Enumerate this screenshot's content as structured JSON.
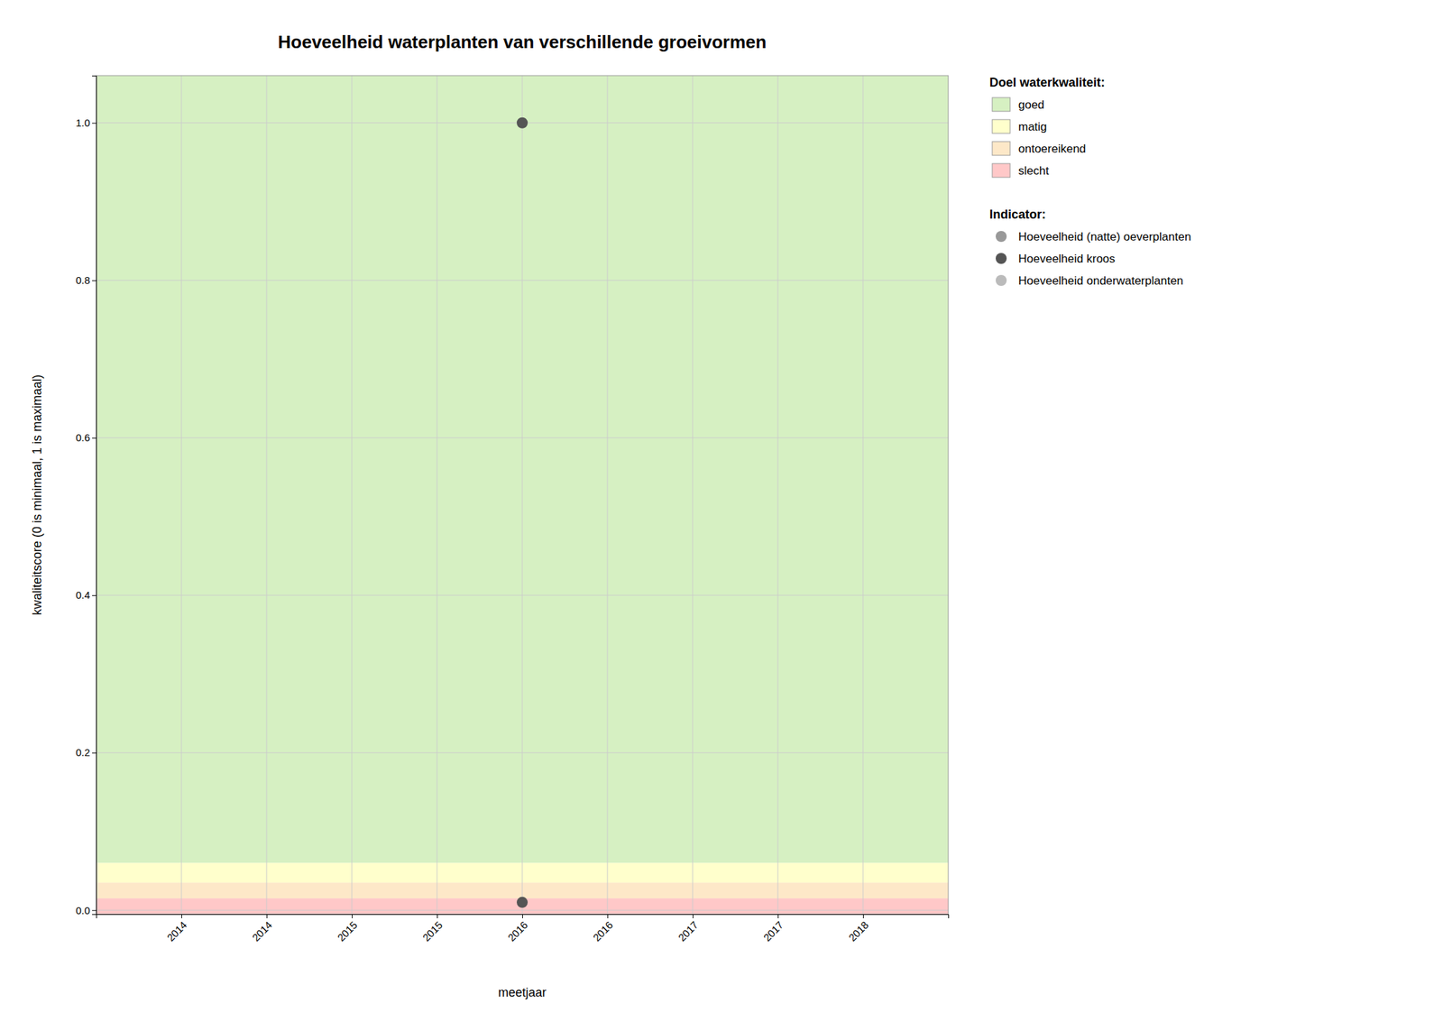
{
  "chart_data": {
    "type": "scatter",
    "title": "Hoeveelheid waterplanten van verschillende groeivormen",
    "xlabel": "meetjaar",
    "ylabel": "kwaliteitscore (0 is minimaal, 1 is maximaal)",
    "xlim": [
      2013.5,
      2018.5
    ],
    "ylim": [
      -0.005,
      1.06
    ],
    "xticks": [
      2014.0,
      {
        "value": 2014.5,
        "label": "2014"
      },
      2015.0,
      {
        "value": 2015.5,
        "label": "2015"
      },
      2016.0,
      {
        "value": 2016.5,
        "label": "2016"
      },
      2017.0,
      {
        "value": 2017.5,
        "label": "2017"
      },
      2018.0
    ],
    "yticks": [
      {
        "value": 0.0,
        "label": "0.0"
      },
      0.2,
      0.4,
      0.6,
      0.8,
      {
        "value": 1.0,
        "label": "1.0"
      }
    ],
    "grid": true,
    "legend": "right",
    "band_legend_title": "Doel waterkwaliteit:",
    "series_legend_title": "Indicator:",
    "bands": [
      {
        "name": "goed",
        "ymin": 0.06,
        "ymax": 1.06,
        "color": "#d6f0c2"
      },
      {
        "name": "matig",
        "ymin": 0.035,
        "ymax": 0.06,
        "color": "#ffffcc"
      },
      {
        "name": "ontoereikend",
        "ymin": 0.015,
        "ymax": 0.035,
        "color": "#fde8c8"
      },
      {
        "name": "slecht",
        "ymin": -0.005,
        "ymax": 0.015,
        "color": "#ffc8c8"
      }
    ],
    "series": [
      {
        "name": "Hoeveelheid (natte) oeverplanten",
        "color": "#999999",
        "x": [],
        "values": []
      },
      {
        "name": "Hoeveelheid kroos",
        "color": "#555555",
        "x": [
          2016.0,
          2016.0
        ],
        "values": [
          1.0,
          0.01
        ]
      },
      {
        "name": "Hoeveelheid onderwaterplanten",
        "color": "#bbbbbb",
        "x": [],
        "values": []
      }
    ]
  }
}
